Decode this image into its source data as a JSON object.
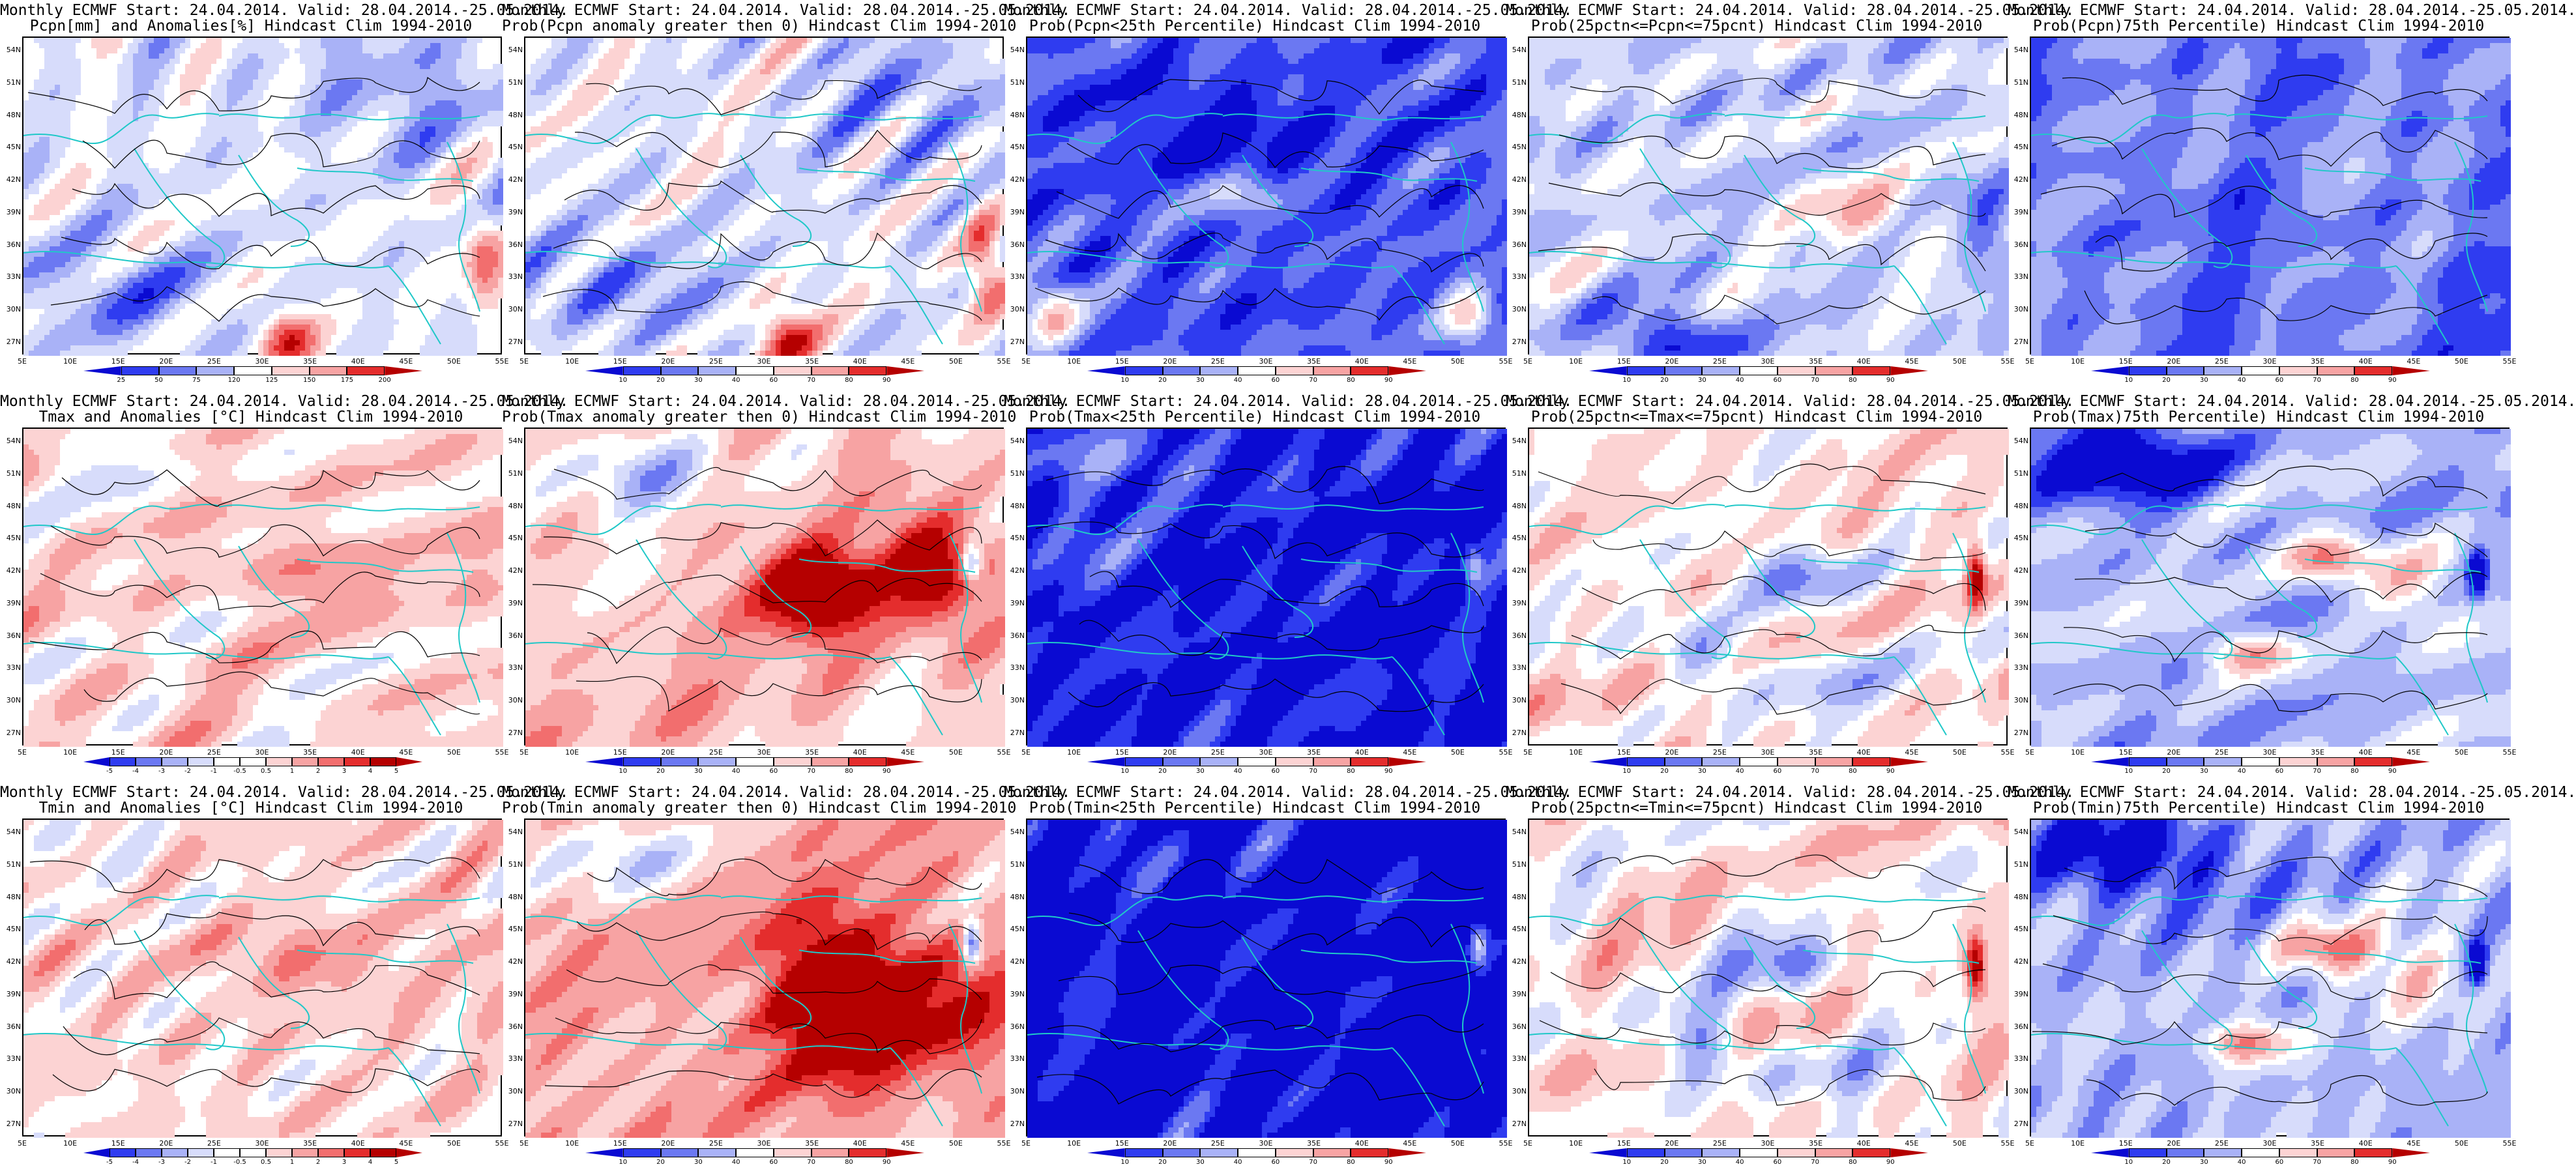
{
  "colors": {
    "darkblue": "#0a0ad2",
    "blue": "#2f3cf0",
    "midblue": "#6b78f2",
    "lightblue": "#a9b2f7",
    "paleblue": "#d7dcfb",
    "white": "#ffffff",
    "palered": "#fcd3d3",
    "lightred": "#f7a3a3",
    "midred": "#f26e6e",
    "red": "#e42d2d",
    "darkred": "#b50000",
    "coast": "#20c8c8",
    "contour": "#000000"
  },
  "axes": {
    "lat_labels": [
      "54N",
      "51N",
      "48N",
      "45N",
      "42N",
      "39N",
      "36N",
      "33N",
      "30N",
      "27N"
    ],
    "lon_labels": [
      "5E",
      "10E",
      "15E",
      "20E",
      "25E",
      "30E",
      "35E",
      "40E",
      "45E",
      "50E",
      "55E"
    ]
  },
  "colorbars": {
    "pcpn_anom": [
      "25",
      "50",
      "75",
      "120",
      "125",
      "150",
      "175",
      "200"
    ],
    "prob": [
      "10",
      "20",
      "30",
      "40",
      "60",
      "70",
      "80",
      "90"
    ],
    "temp_anom": [
      "-5",
      "-4",
      "-3",
      "-2",
      "-1",
      "-0.5",
      "0.5",
      "1",
      "2",
      "3",
      "4",
      "5"
    ]
  },
  "panels": [
    {
      "id": "p1",
      "line1": "Monthly ECMWF Start: 24.04.2014. Valid: 28.04.2014.-25.05.2014.",
      "line2": "Pcpn[mm] and Anomalies[%] Hindcast Clim 1994-2010",
      "scheme": "pcpn",
      "colorbar": "pcpn_anom",
      "seed": 11
    },
    {
      "id": "p2",
      "line1": "Monthly ECMWF Start: 24.04.2014. Valid: 28.04.2014.-25.05.2014.",
      "line2": "Prob(Pcpn anomaly greater then 0) Hindcast Clim 1994-2010",
      "scheme": "pcpn",
      "colorbar": "prob",
      "seed": 12
    },
    {
      "id": "p3",
      "line1": "Monthly ECMWF Start: 24.04.2014. Valid: 28.04.2014.-25.05.2014.",
      "line2": "Prob(Pcpn<25th Percentile) Hindcast Clim 1994-2010",
      "scheme": "pcpn_low",
      "colorbar": "prob",
      "seed": 13
    },
    {
      "id": "p4",
      "line1": "Monthly ECMWF Start: 24.04.2014. Valid: 28.04.2014.-25.05.2014.",
      "line2": "Prob(25pctn<=Pcpn<=75pcnt) Hindcast Clim 1994-2010",
      "scheme": "pcpn_mid",
      "colorbar": "prob",
      "seed": 14
    },
    {
      "id": "p5",
      "line1": "Monthly ECMWF Start: 24.04.2014. Valid: 28.04.2014.-25.05.2014.",
      "line2": "Prob(Pcpn)75th Percentile) Hindcast Clim 1994-2010",
      "scheme": "pcpn_high",
      "colorbar": "prob",
      "seed": 15
    },
    {
      "id": "p6",
      "line1": "Monthly ECMWF Start: 24.04.2014. Valid: 28.04.2014.-25.05.2014.",
      "line2": "Tmax and Anomalies [°C] Hindcast Clim 1994-2010",
      "scheme": "tanom",
      "colorbar": "temp_anom",
      "seed": 21
    },
    {
      "id": "p7",
      "line1": "Monthly ECMWF Start: 24.04.2014. Valid: 28.04.2014.-25.05.2014.",
      "line2": "Prob(Tmax anomaly greater then 0) Hindcast Clim 1994-2010",
      "scheme": "twarm",
      "colorbar": "prob",
      "seed": 22
    },
    {
      "id": "p8",
      "line1": "Monthly ECMWF Start: 24.04.2014. Valid: 28.04.2014.-25.05.2014.",
      "line2": "Prob(Tmax<25th Percentile) Hindcast Clim 1994-2010",
      "scheme": "tcold",
      "colorbar": "prob",
      "seed": 23
    },
    {
      "id": "p9",
      "line1": "Monthly ECMWF Start: 24.04.2014. Valid: 28.04.2014.-25.05.2014.",
      "line2": "Prob(25pctn<=Tmax<=75pcnt) Hindcast Clim 1994-2010",
      "scheme": "tmid",
      "colorbar": "prob",
      "seed": 24
    },
    {
      "id": "p10",
      "line1": "Monthly ECMWF Start: 24.04.2014. Valid: 28.04.2014.-25.05.2014.",
      "line2": "Prob(Tmax)75th Percentile) Hindcast Clim 1994-2010",
      "scheme": "thigh",
      "colorbar": "prob",
      "seed": 25
    },
    {
      "id": "p11",
      "line1": "Monthly ECMWF Start: 24.04.2014. Valid: 28.04.2014.-25.05.2014.",
      "line2": "Tmin and Anomalies [°C] Hindcast Clim 1994-2010",
      "scheme": "tanom",
      "colorbar": "temp_anom",
      "seed": 31
    },
    {
      "id": "p12",
      "line1": "Monthly ECMWF Start: 24.04.2014. Valid: 28.04.2014.-25.05.2014.",
      "line2": "Prob(Tmin anomaly greater then 0) Hindcast Clim 1994-2010",
      "scheme": "twarm2",
      "colorbar": "prob",
      "seed": 32
    },
    {
      "id": "p13",
      "line1": "Monthly ECMWF Start: 24.04.2014. Valid: 28.04.2014.-25.05.2014.",
      "line2": "Prob(Tmin<25th Percentile) Hindcast Clim 1994-2010",
      "scheme": "tcold2",
      "colorbar": "prob",
      "seed": 33
    },
    {
      "id": "p14",
      "line1": "Monthly ECMWF Start: 24.04.2014. Valid: 28.04.2014.-25.05.2014.",
      "line2": "Prob(25pctn<=Tmin<=75pcnt) Hindcast Clim 1994-2010",
      "scheme": "tmid",
      "colorbar": "prob",
      "seed": 34
    },
    {
      "id": "p15",
      "line1": "Monthly ECMWF Start: 24.04.2014. Valid: 28.04.2014.-25.05.2014.",
      "line2": "Prob(Tmin)75th Percentile) Hindcast Clim 1994-2010",
      "scheme": "thigh",
      "colorbar": "prob",
      "seed": 35
    }
  ]
}
